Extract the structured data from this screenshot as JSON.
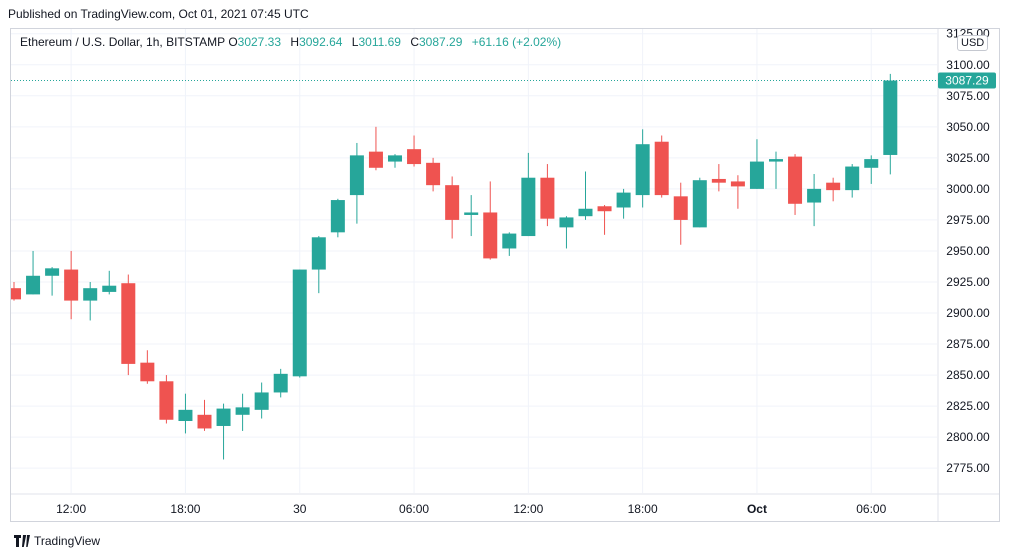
{
  "published": "Published on TradingView.com, Oct 01, 2021 07:45 UTC",
  "legend": {
    "symbol": "Ethereum / U.S. Dollar, 1h, BITSTAMP",
    "o_label": "O",
    "o_value": "3027.33",
    "h_label": "H",
    "h_value": "3092.64",
    "l_label": "L",
    "l_value": "3011.69",
    "c_label": "C",
    "c_value": "3087.29",
    "change": "+61.16 (+2.02%)"
  },
  "currency": "USD",
  "brand": "TradingView",
  "colors": {
    "up": "#26a69a",
    "down": "#ef5350",
    "grid": "#f0f3fa",
    "last_price": "#26a69a"
  },
  "chart_data": {
    "type": "candlestick",
    "timeframe": "1h",
    "ylim": [
      2755,
      3128
    ],
    "y_ticks": [
      "3125.00",
      "3100.00",
      "3075.00",
      "3050.00",
      "3025.00",
      "3000.00",
      "2975.00",
      "2950.00",
      "2925.00",
      "2900.00",
      "2875.00",
      "2850.00",
      "2825.00",
      "2800.00",
      "2775.00"
    ],
    "x_ticks": [
      {
        "label": "12:00",
        "index": 3
      },
      {
        "label": "18:00",
        "index": 9
      },
      {
        "label": "30",
        "index": 15
      },
      {
        "label": "06:00",
        "index": 21
      },
      {
        "label": "12:00",
        "index": 27
      },
      {
        "label": "18:00",
        "index": 33
      },
      {
        "label": "Oct",
        "index": 39
      },
      {
        "label": "06:00",
        "index": 45
      }
    ],
    "last_price": 3087.29,
    "last_price_label": "3087.29",
    "candles": [
      {
        "o": 2920,
        "h": 2925,
        "l": 2910,
        "c": 2911
      },
      {
        "o": 2915,
        "h": 2950,
        "l": 2915,
        "c": 2930
      },
      {
        "o": 2930,
        "h": 2937,
        "l": 2914,
        "c": 2936
      },
      {
        "o": 2935,
        "h": 2950,
        "l": 2895,
        "c": 2910
      },
      {
        "o": 2910,
        "h": 2925,
        "l": 2894,
        "c": 2920
      },
      {
        "o": 2917,
        "h": 2934,
        "l": 2915,
        "c": 2922
      },
      {
        "o": 2924,
        "h": 2931,
        "l": 2850,
        "c": 2859
      },
      {
        "o": 2860,
        "h": 2870,
        "l": 2843,
        "c": 2845
      },
      {
        "o": 2845,
        "h": 2850,
        "l": 2811,
        "c": 2814
      },
      {
        "o": 2813,
        "h": 2835,
        "l": 2803,
        "c": 2822
      },
      {
        "o": 2818,
        "h": 2830,
        "l": 2805,
        "c": 2807
      },
      {
        "o": 2809,
        "h": 2827,
        "l": 2782,
        "c": 2823
      },
      {
        "o": 2818,
        "h": 2835,
        "l": 2805,
        "c": 2824
      },
      {
        "o": 2822,
        "h": 2844,
        "l": 2815,
        "c": 2836
      },
      {
        "o": 2836,
        "h": 2855,
        "l": 2832,
        "c": 2851
      },
      {
        "o": 2849,
        "h": 2935,
        "l": 2848,
        "c": 2935
      },
      {
        "o": 2935,
        "h": 2962,
        "l": 2916,
        "c": 2961
      },
      {
        "o": 2965,
        "h": 2992,
        "l": 2961,
        "c": 2991
      },
      {
        "o": 2995,
        "h": 3037,
        "l": 2972,
        "c": 3027
      },
      {
        "o": 3030,
        "h": 3050,
        "l": 3015,
        "c": 3017
      },
      {
        "o": 3022,
        "h": 3028,
        "l": 3017,
        "c": 3027
      },
      {
        "o": 3032,
        "h": 3043,
        "l": 3018,
        "c": 3020
      },
      {
        "o": 3021,
        "h": 3025,
        "l": 2998,
        "c": 3003
      },
      {
        "o": 3003,
        "h": 3010,
        "l": 2960,
        "c": 2975
      },
      {
        "o": 2979,
        "h": 2995,
        "l": 2962,
        "c": 2981
      },
      {
        "o": 2981,
        "h": 3006,
        "l": 2943,
        "c": 2944
      },
      {
        "o": 2952,
        "h": 2965,
        "l": 2946,
        "c": 2964
      },
      {
        "o": 2962,
        "h": 3029,
        "l": 2962,
        "c": 3009
      },
      {
        "o": 3009,
        "h": 3020,
        "l": 2970,
        "c": 2976
      },
      {
        "o": 2969,
        "h": 2978,
        "l": 2952,
        "c": 2977
      },
      {
        "o": 2978,
        "h": 3014,
        "l": 2975,
        "c": 2984
      },
      {
        "o": 2986,
        "h": 2987,
        "l": 2963,
        "c": 2982
      },
      {
        "o": 2985,
        "h": 3000,
        "l": 2976,
        "c": 2997
      },
      {
        "o": 2995,
        "h": 3048,
        "l": 2985,
        "c": 3036
      },
      {
        "o": 3038,
        "h": 3043,
        "l": 2993,
        "c": 2995
      },
      {
        "o": 2994,
        "h": 3005,
        "l": 2955,
        "c": 2975
      },
      {
        "o": 2969,
        "h": 3009,
        "l": 2969,
        "c": 3007
      },
      {
        "o": 3008,
        "h": 3020,
        "l": 2998,
        "c": 3005
      },
      {
        "o": 3006,
        "h": 3011,
        "l": 2984,
        "c": 3002
      },
      {
        "o": 3000,
        "h": 3040,
        "l": 3000,
        "c": 3022
      },
      {
        "o": 3022,
        "h": 3030,
        "l": 3000,
        "c": 3024
      },
      {
        "o": 3026,
        "h": 3028,
        "l": 2979,
        "c": 2988
      },
      {
        "o": 2989,
        "h": 3012,
        "l": 2970,
        "c": 3000
      },
      {
        "o": 3005,
        "h": 3009,
        "l": 2990,
        "c": 2999
      },
      {
        "o": 2999,
        "h": 3020,
        "l": 2993,
        "c": 3018
      },
      {
        "o": 3017,
        "h": 3027,
        "l": 3004,
        "c": 3024
      },
      {
        "o": 3027.33,
        "h": 3092.64,
        "l": 3011.69,
        "c": 3087.29
      }
    ]
  }
}
